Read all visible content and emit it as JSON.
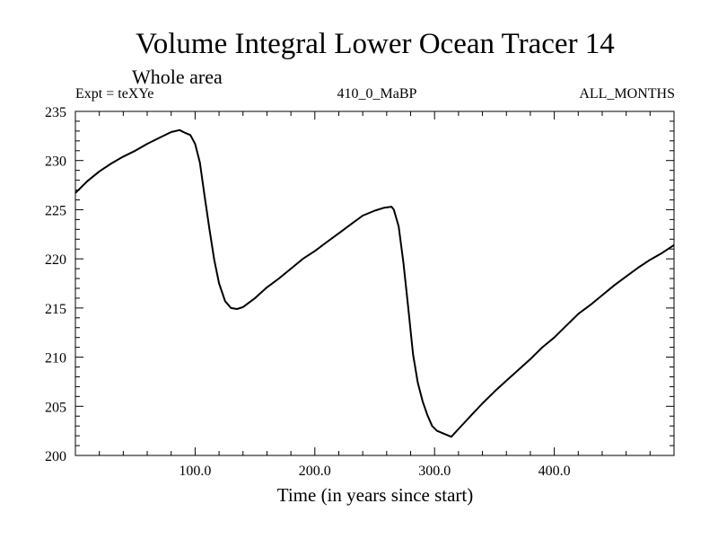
{
  "chart_data": {
    "type": "line",
    "title": "Volume Integral Lower Ocean Tracer 14",
    "subtitle": "Whole area",
    "annotations": {
      "expt": "Expt = teXYe",
      "run": "410_0_MaBP",
      "period": "ALL_MONTHS"
    },
    "xlabel": "Time (in years since start)",
    "ylabel": "",
    "xlim": [
      0,
      500
    ],
    "ylim": [
      200,
      235
    ],
    "x_ticks": [
      100,
      200,
      300,
      400
    ],
    "x_tick_labels": [
      "100.0",
      "200.0",
      "300.0",
      "400.0"
    ],
    "y_ticks": [
      200,
      205,
      210,
      215,
      220,
      225,
      230,
      235
    ],
    "y_tick_labels": [
      "200",
      "205",
      "210",
      "215",
      "220",
      "225",
      "230",
      "235"
    ],
    "grid": false,
    "legend": "none",
    "line_color": "#000000",
    "series": [
      {
        "x": [
          0,
          10,
          20,
          30,
          40,
          50,
          60,
          70,
          80,
          87,
          92,
          96,
          100,
          104,
          108,
          112,
          116,
          120,
          125,
          130,
          135,
          140,
          150,
          160,
          170,
          180,
          190,
          200,
          210,
          220,
          230,
          240,
          250,
          258,
          264,
          266,
          270,
          274,
          278,
          282,
          286,
          290,
          294,
          298,
          302,
          308,
          314,
          320,
          330,
          340,
          350,
          360,
          370,
          380,
          390,
          400,
          410,
          420,
          430,
          440,
          450,
          460,
          470,
          480,
          490,
          500
        ],
        "y": [
          226.7,
          227.9,
          228.9,
          229.7,
          230.4,
          231.0,
          231.7,
          232.3,
          232.9,
          233.1,
          232.8,
          232.6,
          231.7,
          229.8,
          226.3,
          223.0,
          219.9,
          217.5,
          215.7,
          215.0,
          214.9,
          215.1,
          216.0,
          217.1,
          218.0,
          219.0,
          220.0,
          220.8,
          221.7,
          222.6,
          223.5,
          224.4,
          224.9,
          225.2,
          225.3,
          225.0,
          223.3,
          219.6,
          215.0,
          210.3,
          207.4,
          205.5,
          204.1,
          203.0,
          202.5,
          202.2,
          201.9,
          202.7,
          204.0,
          205.3,
          206.5,
          207.6,
          208.7,
          209.8,
          211.0,
          212.0,
          213.2,
          214.4,
          215.3,
          216.3,
          217.3,
          218.2,
          219.1,
          219.9,
          220.6,
          221.4
        ]
      }
    ]
  }
}
